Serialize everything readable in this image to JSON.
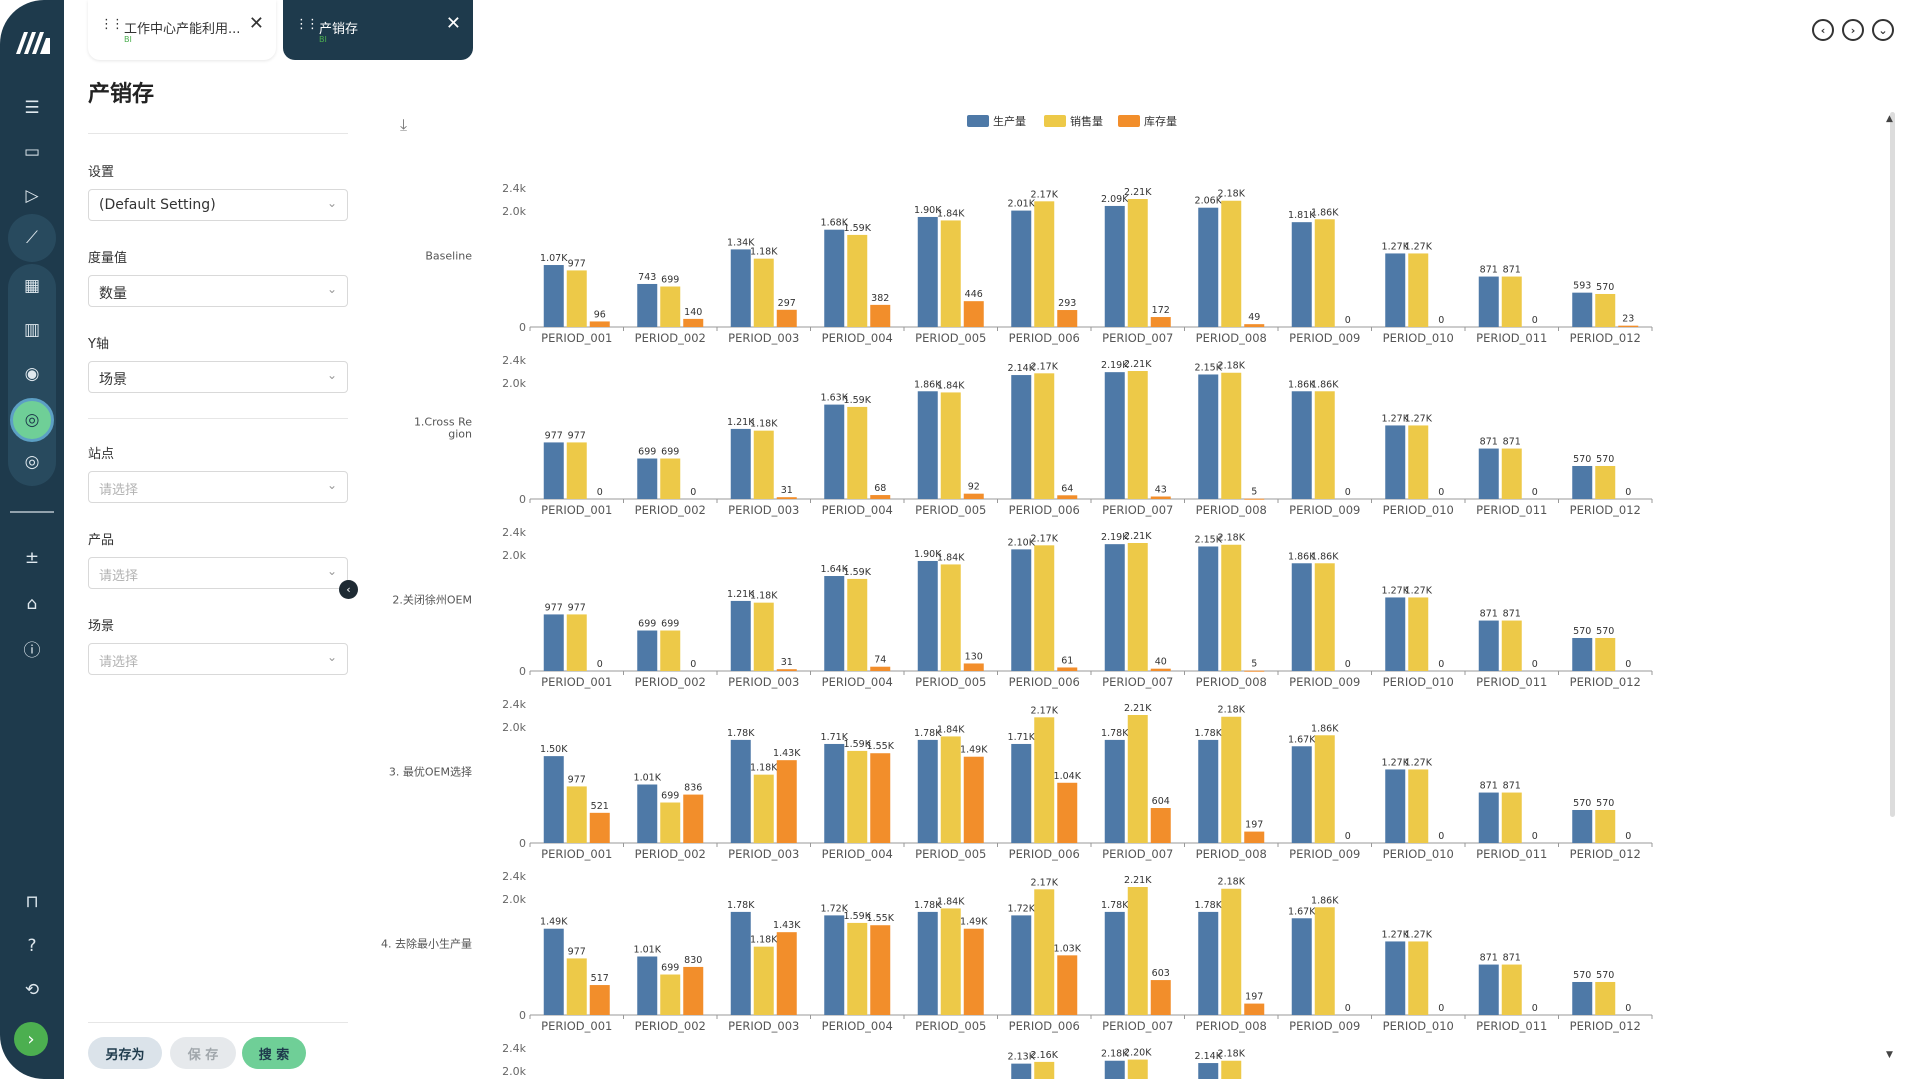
{
  "tabs": [
    {
      "title": "工作中心产能利用...",
      "subtitle": "BI"
    },
    {
      "title": "产销存",
      "subtitle": "BI"
    }
  ],
  "page": {
    "title": "产销存"
  },
  "filters": {
    "settings_label": "设置",
    "settings_value": "(Default Setting)",
    "measure_label": "度量值",
    "measure_value": "数量",
    "yaxis_label": "Y轴",
    "yaxis_value": "场景",
    "site_label": "站点",
    "site_placeholder": "请选择",
    "product_label": "产品",
    "product_placeholder": "请选择",
    "scenario_label": "场景",
    "scenario_placeholder": "请选择"
  },
  "buttons": {
    "save_as": "另存为",
    "save": "保 存",
    "search": "搜 索"
  },
  "icons": {
    "rail": [
      "logo-icon",
      "list-icon",
      "monitor-chart-icon",
      "play-icon",
      "line-chart-icon",
      "table-icon",
      "building-icon",
      "eye-screen-icon",
      "target-analysis-icon",
      "target-icon",
      "split-icon",
      "factory-icon",
      "info-icon",
      "lock-icon",
      "help-icon",
      "logout-icon",
      "arrow-right-icon"
    ],
    "nav": [
      "prev-icon",
      "next-icon",
      "dropdown-icon"
    ]
  },
  "colors": {
    "rail": "#1e3a4c",
    "production": "#4e79a7",
    "sales": "#edc948",
    "inventory": "#f28e2b",
    "accent": "#6fcf97"
  },
  "chart_data": {
    "type": "bar",
    "legend": [
      "生产量",
      "销售量",
      "库存量"
    ],
    "legend_position": "top-center",
    "categories": [
      "PERIOD_001",
      "PERIOD_002",
      "PERIOD_003",
      "PERIOD_004",
      "PERIOD_005",
      "PERIOD_006",
      "PERIOD_007",
      "PERIOD_008",
      "PERIOD_009",
      "PERIOD_010",
      "PERIOD_011",
      "PERIOD_012"
    ],
    "y_ticks": [
      "2.4k",
      "2.0k",
      "0"
    ],
    "ylim": [
      0,
      2400
    ],
    "grid": false,
    "rows": [
      {
        "name": "Baseline",
        "series": [
          {
            "name": "生产量",
            "values": [
              1070,
              743,
              1340,
              1680,
              1900,
              2010,
              2090,
              2060,
              1810,
              1270,
              871,
              593
            ],
            "labels": [
              "1.07K",
              "743",
              "1.34K",
              "1.68K",
              "1.90K",
              "2.01K",
              "2.09K",
              "2.06K",
              "1.81K",
              "1.27K",
              "871",
              "593"
            ]
          },
          {
            "name": "销售量",
            "values": [
              977,
              699,
              1180,
              1590,
              1840,
              2170,
              2210,
              2180,
              1860,
              1270,
              871,
              570
            ],
            "labels": [
              "977",
              "699",
              "1.18K",
              "1.59K",
              "1.84K",
              "2.17K",
              "2.21K",
              "2.18K",
              "1.86K",
              "1.27K",
              "871",
              "570"
            ]
          },
          {
            "name": "库存量",
            "values": [
              96,
              140,
              297,
              382,
              446,
              293,
              172,
              49,
              0,
              0,
              0,
              23
            ],
            "labels": [
              "96",
              "140",
              "297",
              "382",
              "446",
              "293",
              "172",
              "49",
              "0",
              "0",
              "0",
              "23"
            ]
          }
        ]
      },
      {
        "name": "1.Cross Region",
        "series": [
          {
            "name": "生产量",
            "values": [
              977,
              699,
              1210,
              1630,
              1860,
              2140,
              2190,
              2150,
              1860,
              1270,
              871,
              570
            ],
            "labels": [
              "977",
              "699",
              "1.21K",
              "1.63K",
              "1.86K",
              "2.14K",
              "2.19K",
              "2.15K",
              "1.86K",
              "1.27K",
              "871",
              "570"
            ]
          },
          {
            "name": "销售量",
            "values": [
              977,
              699,
              1180,
              1590,
              1840,
              2170,
              2210,
              2180,
              1860,
              1270,
              871,
              570
            ],
            "labels": [
              "977",
              "699",
              "1.18K",
              "1.59K",
              "1.84K",
              "2.17K",
              "2.21K",
              "2.18K",
              "1.86K",
              "1.27K",
              "871",
              "570"
            ]
          },
          {
            "name": "库存量",
            "values": [
              0,
              0,
              31,
              68,
              92,
              64,
              43,
              5,
              0,
              0,
              0,
              0
            ],
            "labels": [
              "0",
              "0",
              "31",
              "68",
              "92",
              "64",
              "43",
              "5",
              "0",
              "0",
              "0",
              "0"
            ]
          }
        ]
      },
      {
        "name": "2.关闭徐州OEM",
        "series": [
          {
            "name": "生产量",
            "values": [
              977,
              699,
              1210,
              1640,
              1900,
              2100,
              2190,
              2150,
              1860,
              1270,
              871,
              570
            ],
            "labels": [
              "977",
              "699",
              "1.21K",
              "1.64K",
              "1.90K",
              "2.10K",
              "2.19K",
              "2.15K",
              "1.86K",
              "1.27K",
              "871",
              "570"
            ]
          },
          {
            "name": "销售量",
            "values": [
              977,
              699,
              1180,
              1590,
              1840,
              2170,
              2210,
              2180,
              1860,
              1270,
              871,
              570
            ],
            "labels": [
              "977",
              "699",
              "1.18K",
              "1.59K",
              "1.84K",
              "2.17K",
              "2.21K",
              "2.18K",
              "1.86K",
              "1.27K",
              "871",
              "570"
            ]
          },
          {
            "name": "库存量",
            "values": [
              0,
              0,
              31,
              74,
              130,
              61,
              40,
              5,
              0,
              0,
              0,
              0
            ],
            "labels": [
              "0",
              "0",
              "31",
              "74",
              "130",
              "61",
              "40",
              "5",
              "0",
              "0",
              "0",
              "0"
            ]
          }
        ]
      },
      {
        "name": "3. 最优OEM选择",
        "series": [
          {
            "name": "生产量",
            "values": [
              1500,
              1010,
              1780,
              1710,
              1780,
              1710,
              1780,
              1780,
              1670,
              1270,
              871,
              570
            ],
            "labels": [
              "1.50K",
              "1.01K",
              "1.78K",
              "1.71K",
              "1.78K",
              "1.71K",
              "1.78K",
              "1.78K",
              "1.67K",
              "1.27K",
              "871",
              "570"
            ]
          },
          {
            "name": "销售量",
            "values": [
              977,
              699,
              1180,
              1590,
              1840,
              2170,
              2210,
              2180,
              1860,
              1270,
              871,
              570
            ],
            "labels": [
              "977",
              "699",
              "1.18K",
              "1.59K",
              "1.84K",
              "2.17K",
              "2.21K",
              "2.18K",
              "1.86K",
              "1.27K",
              "871",
              "570"
            ]
          },
          {
            "name": "库存量",
            "values": [
              521,
              836,
              1430,
              1550,
              1490,
              1040,
              604,
              197,
              0,
              0,
              0,
              0
            ],
            "labels": [
              "521",
              "836",
              "1.43K",
              "1.55K",
              "1.49K",
              "1.04K",
              "604",
              "197",
              "0",
              "0",
              "0",
              "0"
            ]
          }
        ]
      },
      {
        "name": "4. 去除最小生产量",
        "series": [
          {
            "name": "生产量",
            "values": [
              1490,
              1010,
              1780,
              1720,
              1780,
              1720,
              1780,
              1780,
              1670,
              1270,
              871,
              570
            ],
            "labels": [
              "1.49K",
              "1.01K",
              "1.78K",
              "1.72K",
              "1.78K",
              "1.72K",
              "1.78K",
              "1.78K",
              "1.67K",
              "1.27K",
              "871",
              "570"
            ]
          },
          {
            "name": "销售量",
            "values": [
              977,
              699,
              1180,
              1590,
              1840,
              2170,
              2210,
              2180,
              1860,
              1270,
              871,
              570
            ],
            "labels": [
              "977",
              "699",
              "1.18K",
              "1.59K",
              "1.84K",
              "2.17K",
              "2.21K",
              "2.18K",
              "1.86K",
              "1.27K",
              "871",
              "570"
            ]
          },
          {
            "name": "库存量",
            "values": [
              517,
              830,
              1430,
              1550,
              1490,
              1030,
              603,
              197,
              0,
              0,
              0,
              0
            ],
            "labels": [
              "517",
              "830",
              "1.43K",
              "1.55K",
              "1.49K",
              "1.03K",
              "603",
              "197",
              "0",
              "0",
              "0",
              "0"
            ]
          }
        ]
      },
      {
        "name": "",
        "partial": true,
        "series": [
          {
            "name": "生产量",
            "values": [
              null,
              null,
              null,
              null,
              null,
              2130,
              2180,
              2140,
              null,
              null,
              null,
              null
            ],
            "labels": [
              "",
              "",
              "",
              "",
              "",
              "2.13K",
              "2.18K",
              "2.14K",
              "",
              "",
              "",
              ""
            ]
          },
          {
            "name": "销售量",
            "values": [
              null,
              null,
              null,
              null,
              null,
              2160,
              2200,
              2180,
              null,
              null,
              null,
              null
            ],
            "labels": [
              "",
              "",
              "",
              "",
              "",
              "2.16K",
              "2.20K",
              "2.18K",
              "",
              "",
              "",
              ""
            ]
          },
          {
            "name": "库存量",
            "values": [
              null,
              null,
              null,
              null,
              null,
              null,
              null,
              null,
              null,
              null,
              null,
              null
            ],
            "labels": [
              "",
              "",
              "",
              "",
              "",
              "",
              "",
              "",
              "",
              "",
              "",
              ""
            ]
          }
        ]
      }
    ]
  }
}
